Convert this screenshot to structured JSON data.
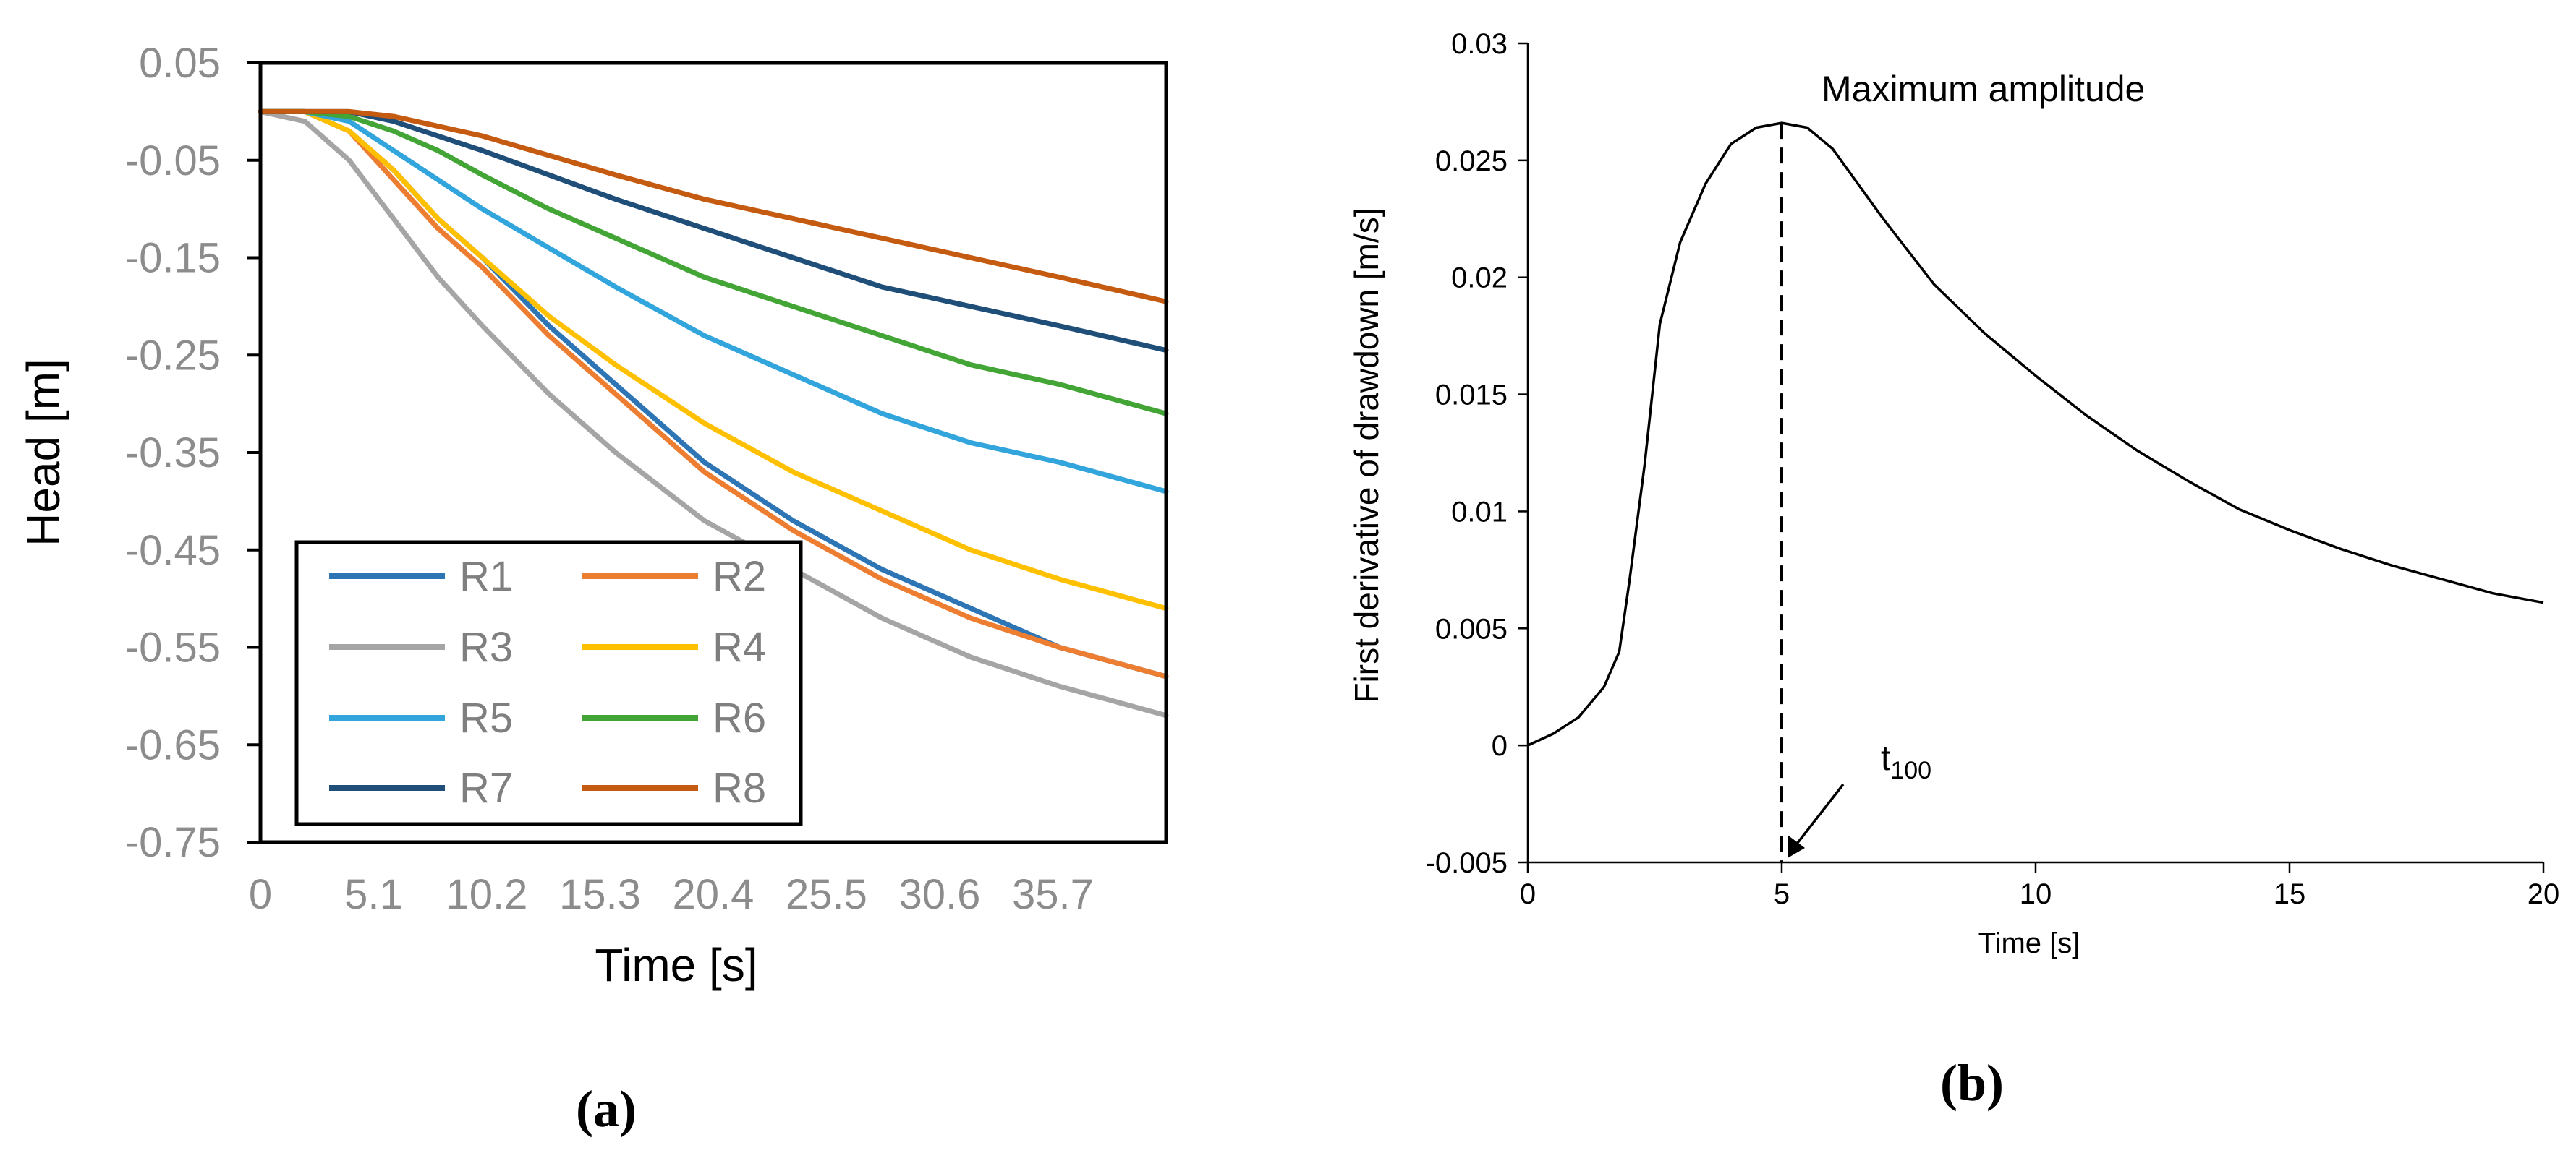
{
  "chart_data": [
    {
      "panel": "a",
      "type": "line",
      "xlabel": "Time [s]",
      "ylabel": "Head [m]",
      "xlim": [
        0,
        40.8
      ],
      "ylim": [
        -0.75,
        0.05
      ],
      "x_ticks": [
        "0",
        "5.1",
        "10.2",
        "15.3",
        "20.4",
        "25.5",
        "30.6",
        "35.7"
      ],
      "y_ticks": [
        "0.05",
        "-0.05",
        "-0.15",
        "-0.25",
        "-0.35",
        "-0.45",
        "-0.55",
        "-0.65",
        "-0.75"
      ],
      "legend_position": "bottom-left",
      "caption": "(a)",
      "series": [
        {
          "name": "R1",
          "color": "#2e75b6",
          "x": [
            0,
            2,
            4,
            6,
            8,
            10,
            13,
            16,
            20,
            24,
            28,
            32,
            36,
            40.8
          ],
          "y": [
            0,
            0,
            -0.02,
            -0.06,
            -0.11,
            -0.15,
            -0.22,
            -0.28,
            -0.36,
            -0.42,
            -0.47,
            -0.51,
            -0.55,
            -0.58
          ]
        },
        {
          "name": "R2",
          "color": "#ed7d31",
          "x": [
            0,
            2,
            4,
            6,
            8,
            10,
            13,
            16,
            20,
            24,
            28,
            32,
            36,
            40.8
          ],
          "y": [
            0,
            0,
            -0.02,
            -0.07,
            -0.12,
            -0.16,
            -0.23,
            -0.29,
            -0.37,
            -0.43,
            -0.48,
            -0.52,
            -0.55,
            -0.58
          ]
        },
        {
          "name": "R3",
          "color": "#a5a5a5",
          "x": [
            0,
            2,
            4,
            6,
            8,
            10,
            13,
            16,
            20,
            24,
            28,
            32,
            36,
            40.8
          ],
          "y": [
            0,
            -0.01,
            -0.05,
            -0.11,
            -0.17,
            -0.22,
            -0.29,
            -0.35,
            -0.42,
            -0.47,
            -0.52,
            -0.56,
            -0.59,
            -0.62
          ]
        },
        {
          "name": "R4",
          "color": "#ffc000",
          "x": [
            0,
            2,
            4,
            6,
            8,
            10,
            13,
            16,
            20,
            24,
            28,
            32,
            36,
            40.8
          ],
          "y": [
            0,
            0,
            -0.02,
            -0.06,
            -0.11,
            -0.15,
            -0.21,
            -0.26,
            -0.32,
            -0.37,
            -0.41,
            -0.45,
            -0.48,
            -0.51
          ]
        },
        {
          "name": "R5",
          "color": "#32a5dc",
          "x": [
            0,
            2,
            4,
            6,
            8,
            10,
            13,
            16,
            20,
            24,
            28,
            32,
            36,
            40.8
          ],
          "y": [
            0,
            0,
            -0.01,
            -0.04,
            -0.07,
            -0.1,
            -0.14,
            -0.18,
            -0.23,
            -0.27,
            -0.31,
            -0.34,
            -0.36,
            -0.39
          ]
        },
        {
          "name": "R6",
          "color": "#43a536",
          "x": [
            0,
            2,
            4,
            6,
            8,
            10,
            13,
            16,
            20,
            24,
            28,
            32,
            36,
            40.8
          ],
          "y": [
            0,
            0,
            -0.005,
            -0.02,
            -0.04,
            -0.065,
            -0.1,
            -0.13,
            -0.17,
            -0.2,
            -0.23,
            -0.26,
            -0.28,
            -0.31
          ]
        },
        {
          "name": "R7",
          "color": "#1f4e79",
          "x": [
            0,
            2,
            4,
            6,
            8,
            10,
            13,
            16,
            20,
            24,
            28,
            32,
            36,
            40.8
          ],
          "y": [
            0,
            0,
            0,
            -0.01,
            -0.025,
            -0.04,
            -0.065,
            -0.09,
            -0.12,
            -0.15,
            -0.18,
            -0.2,
            -0.22,
            -0.245
          ]
        },
        {
          "name": "R8",
          "color": "#c55a11",
          "x": [
            0,
            2,
            4,
            6,
            8,
            10,
            13,
            16,
            20,
            24,
            28,
            32,
            36,
            40.8
          ],
          "y": [
            0,
            0,
            0,
            -0.005,
            -0.015,
            -0.025,
            -0.045,
            -0.065,
            -0.09,
            -0.11,
            -0.13,
            -0.15,
            -0.17,
            -0.195
          ]
        }
      ]
    },
    {
      "panel": "b",
      "type": "line",
      "xlabel": "Time [s]",
      "ylabel": "First derivative of drawdown [m/s]",
      "xlim": [
        0,
        20
      ],
      "ylim": [
        -0.005,
        0.03
      ],
      "x_ticks": [
        "0",
        "5",
        "10",
        "15",
        "20"
      ],
      "y_ticks": [
        "0.03",
        "0.025",
        "0.02",
        "0.015",
        "0.01",
        "0.005",
        "0",
        "-0.005"
      ],
      "caption": "(b)",
      "series": [
        {
          "name": "derivative",
          "color": "#000000",
          "x": [
            0,
            0.5,
            1,
            1.5,
            1.8,
            2,
            2.3,
            2.6,
            3,
            3.5,
            4,
            4.5,
            5,
            5.5,
            6,
            7,
            8,
            9,
            10,
            11,
            12,
            13,
            14,
            15,
            16,
            17,
            18,
            19,
            20
          ],
          "y": [
            0,
            0.0005,
            0.0012,
            0.0025,
            0.004,
            0.007,
            0.012,
            0.018,
            0.0215,
            0.024,
            0.0257,
            0.0264,
            0.0266,
            0.0264,
            0.0255,
            0.0225,
            0.0197,
            0.0176,
            0.0158,
            0.0141,
            0.0126,
            0.0113,
            0.0101,
            0.0092,
            0.0084,
            0.0077,
            0.0071,
            0.0065,
            0.0061
          ]
        }
      ],
      "annotations": [
        {
          "text": "Maximum amplitude",
          "x": 5,
          "y": 0.0266
        },
        {
          "text": "t",
          "subscript": "100",
          "x": 5,
          "y": -0.005
        }
      ]
    }
  ]
}
